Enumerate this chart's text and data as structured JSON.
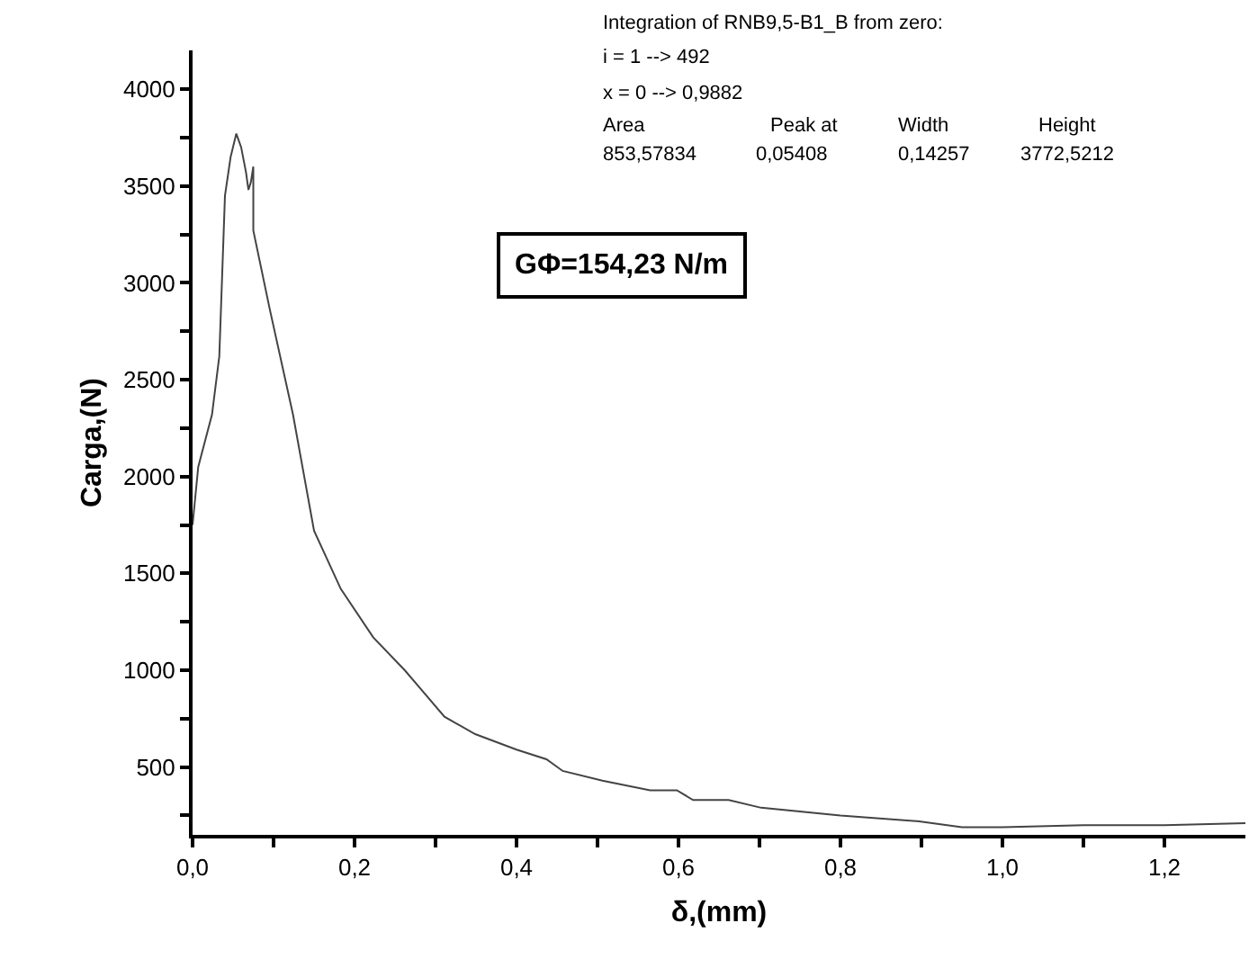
{
  "chart_data": {
    "type": "line",
    "xlabel": "δ,(mm)",
    "ylabel": "Carga,(N)",
    "xlim": [
      0,
      1.3
    ],
    "ylim": [
      150,
      4200
    ],
    "xticks": [
      {
        "value": 0,
        "label": "0,0"
      },
      {
        "value": 0.1,
        "label": null
      },
      {
        "value": 0.2,
        "label": "0,2"
      },
      {
        "value": 0.3,
        "label": null
      },
      {
        "value": 0.4,
        "label": "0,4"
      },
      {
        "value": 0.5,
        "label": null
      },
      {
        "value": 0.6,
        "label": "0,6"
      },
      {
        "value": 0.7,
        "label": null
      },
      {
        "value": 0.8,
        "label": "0,8"
      },
      {
        "value": 0.9,
        "label": null
      },
      {
        "value": 1.0,
        "label": "1,0"
      },
      {
        "value": 1.1,
        "label": null
      },
      {
        "value": 1.2,
        "label": "1,2"
      }
    ],
    "yticks": [
      {
        "value": 250,
        "label": null
      },
      500,
      {
        "value": 750,
        "label": null
      },
      1000,
      {
        "value": 1250,
        "label": null
      },
      1500,
      {
        "value": 1750,
        "label": null
      },
      2000,
      {
        "value": 2250,
        "label": null
      },
      2500,
      {
        "value": 2750,
        "label": null
      },
      3000,
      {
        "value": 3250,
        "label": null
      },
      3500,
      {
        "value": 3750,
        "label": null
      },
      4000
    ],
    "marker": "none",
    "line_style": "solid",
    "series": [
      {
        "color": "#444444",
        "x": [
          0,
          0.007,
          0.024,
          0.033,
          0.04,
          0.047,
          0.054,
          0.06,
          0.066,
          0.069,
          0.072,
          0.075,
          0.075,
          0.095,
          0.124,
          0.15,
          0.183,
          0.223,
          0.262,
          0.311,
          0.349,
          0.4,
          0.437,
          0.457,
          0.506,
          0.565,
          0.598,
          0.618,
          0.662,
          0.702,
          0.8,
          0.897,
          0.95,
          1.0,
          1.1,
          1.2,
          1.3
        ],
        "values": [
          1750,
          2050,
          2320,
          2620,
          3450,
          3650,
          3770,
          3700,
          3570,
          3480,
          3520,
          3600,
          3270,
          2870,
          2320,
          1720,
          1420,
          1170,
          1000,
          760,
          670,
          590,
          540,
          480,
          430,
          380,
          380,
          330,
          330,
          290,
          250,
          220,
          190,
          190,
          200,
          200,
          210
        ]
      }
    ],
    "annotations": [
      "Integration of RNB9,5-B1_B from zero:",
      "i = 1 --> 492",
      "x = 0 --> 0,9882",
      "Area",
      "Peak at",
      "Width",
      "Height",
      "853,57834",
      "0,05408",
      "0,14257",
      "3772,5212",
      "GΦ=154,23 N/m"
    ]
  }
}
